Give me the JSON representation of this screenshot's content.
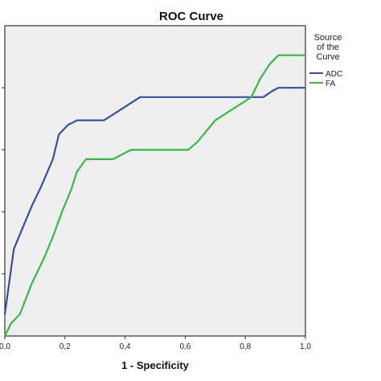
{
  "chart_data": {
    "type": "line",
    "title": "ROC Curve",
    "xlabel": "1 - Specificity",
    "ylabel": "",
    "xlim": [
      0,
      1
    ],
    "ylim": [
      0,
      1
    ],
    "x_ticks": [
      "0,0",
      "0,2",
      "0,4",
      "0,6",
      "0,8",
      "1,0"
    ],
    "grid": false,
    "background": "#efefef",
    "legend": {
      "title_lines": [
        "Source",
        "of the",
        "Curve"
      ],
      "placement": "right"
    },
    "series": [
      {
        "name": "ADC",
        "color": "#3a4f9a",
        "points": [
          [
            0.0,
            0.07
          ],
          [
            0.03,
            0.28
          ],
          [
            0.06,
            0.35
          ],
          [
            0.09,
            0.42
          ],
          [
            0.12,
            0.48
          ],
          [
            0.16,
            0.57
          ],
          [
            0.18,
            0.65
          ],
          [
            0.21,
            0.68
          ],
          [
            0.24,
            0.695
          ],
          [
            0.27,
            0.695
          ],
          [
            0.33,
            0.695
          ],
          [
            0.37,
            0.72
          ],
          [
            0.41,
            0.745
          ],
          [
            0.45,
            0.77
          ],
          [
            0.86,
            0.77
          ],
          [
            0.89,
            0.79
          ],
          [
            0.91,
            0.8
          ],
          [
            1.0,
            0.8
          ]
        ]
      },
      {
        "name": "FA",
        "color": "#3ab54a",
        "points": [
          [
            0.0,
            0.0
          ],
          [
            0.02,
            0.04
          ],
          [
            0.05,
            0.07
          ],
          [
            0.09,
            0.17
          ],
          [
            0.13,
            0.25
          ],
          [
            0.16,
            0.32
          ],
          [
            0.19,
            0.4
          ],
          [
            0.22,
            0.47
          ],
          [
            0.24,
            0.53
          ],
          [
            0.27,
            0.57
          ],
          [
            0.36,
            0.57
          ],
          [
            0.42,
            0.6
          ],
          [
            0.61,
            0.6
          ],
          [
            0.64,
            0.625
          ],
          [
            0.7,
            0.695
          ],
          [
            0.74,
            0.72
          ],
          [
            0.82,
            0.77
          ],
          [
            0.85,
            0.83
          ],
          [
            0.88,
            0.875
          ],
          [
            0.91,
            0.905
          ],
          [
            1.0,
            0.905
          ]
        ]
      }
    ]
  }
}
